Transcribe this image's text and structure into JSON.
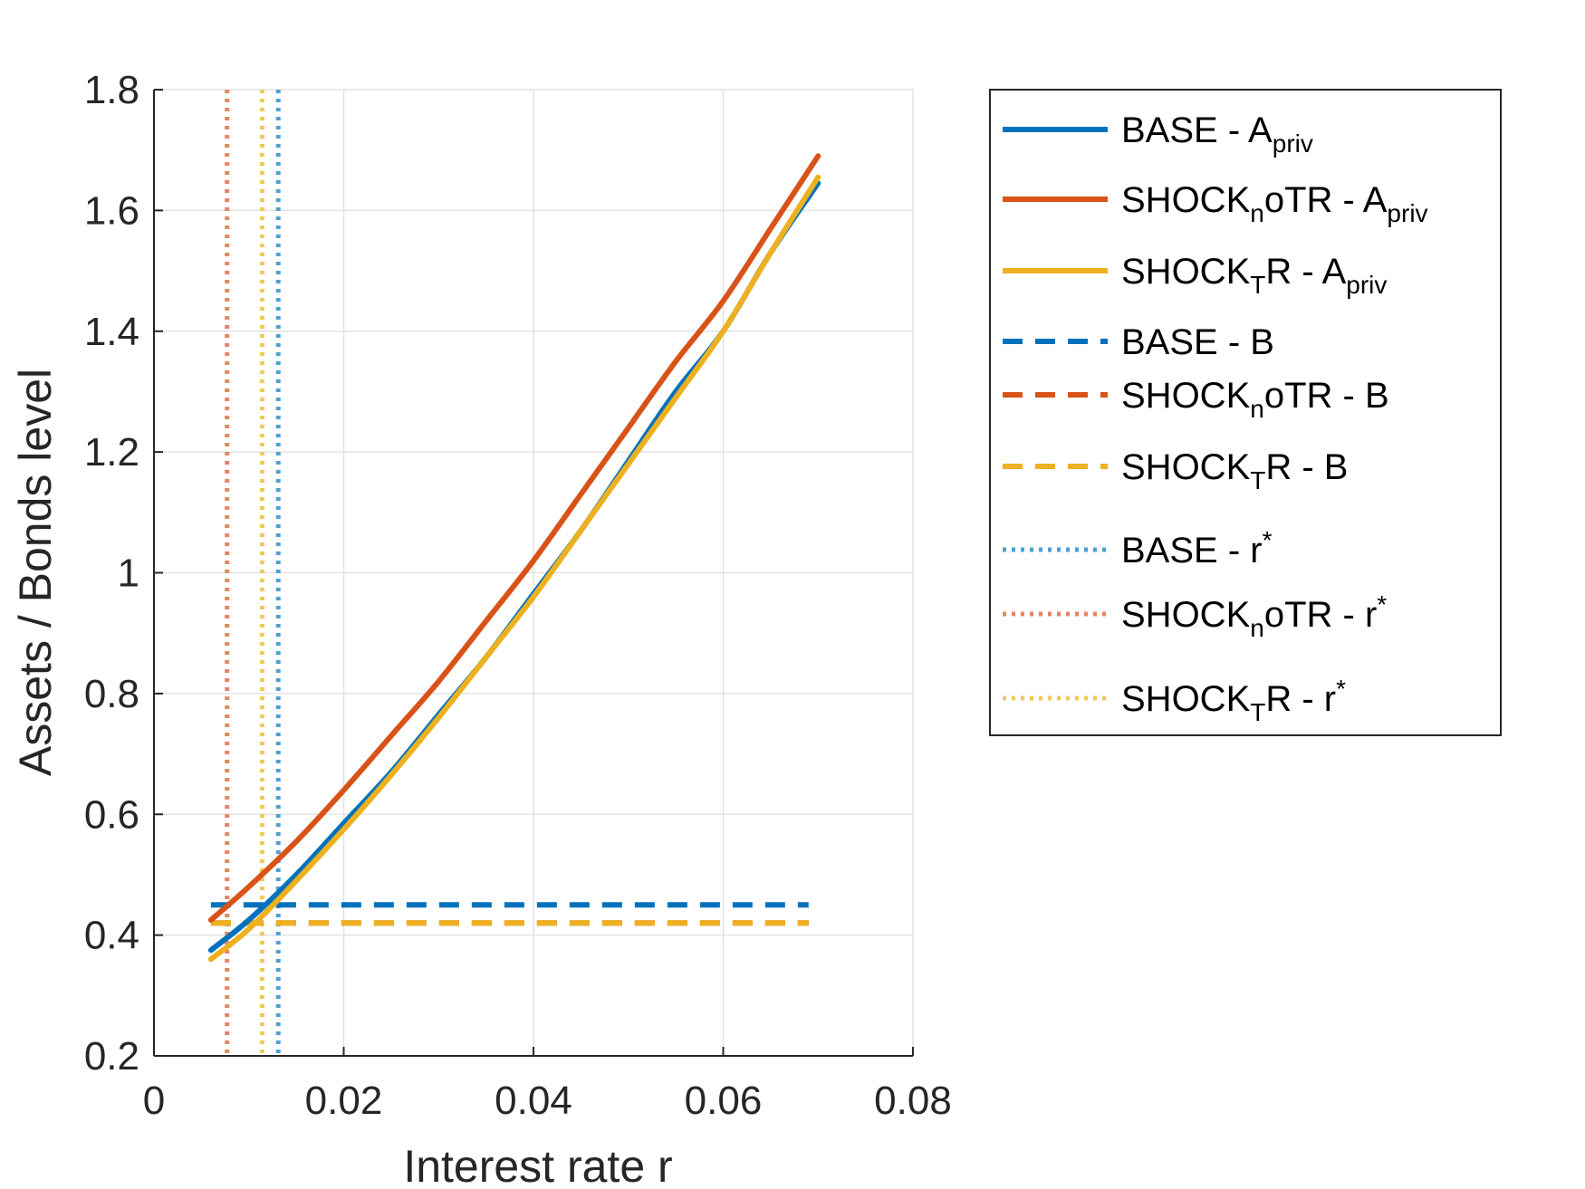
{
  "chart_data": {
    "type": "line",
    "xlabel": "Interest rate r",
    "ylabel": "Assets / Bonds level",
    "xlim": [
      0,
      0.08
    ],
    "ylim": [
      0.2,
      1.8
    ],
    "xticks": [
      0,
      0.02,
      0.04,
      0.06,
      0.08
    ],
    "xtick_labels": [
      "0",
      "0.02",
      "0.04",
      "0.06",
      "0.08"
    ],
    "yticks": [
      0.2,
      0.4,
      0.6,
      0.8,
      1.0,
      1.2,
      1.4,
      1.6,
      1.8
    ],
    "ytick_labels": [
      "0.2",
      "0.4",
      "0.6",
      "0.8",
      "1",
      "1.2",
      "1.4",
      "1.6",
      "1.8"
    ],
    "grid": true,
    "legend_position": "outside-right",
    "series": [
      {
        "name": "BASE - A",
        "name_sub": "priv",
        "name_sup": "",
        "style": "solid",
        "color": "#0072BD",
        "x": [
          0.006,
          0.01,
          0.015,
          0.02,
          0.025,
          0.03,
          0.035,
          0.04,
          0.045,
          0.05,
          0.055,
          0.06,
          0.065,
          0.07
        ],
        "y": [
          0.375,
          0.425,
          0.5,
          0.585,
          0.67,
          0.765,
          0.86,
          0.965,
          1.07,
          1.185,
          1.3,
          1.4,
          1.53,
          1.645
        ]
      },
      {
        "name": "SHOCK",
        "name_sub": "n",
        "name_after": "oTR - A",
        "name_sub2": "priv",
        "style": "solid",
        "color": "#D95319",
        "x": [
          0.006,
          0.01,
          0.015,
          0.02,
          0.025,
          0.03,
          0.035,
          0.04,
          0.045,
          0.05,
          0.055,
          0.06,
          0.065,
          0.07
        ],
        "y": [
          0.425,
          0.48,
          0.555,
          0.64,
          0.73,
          0.82,
          0.92,
          1.02,
          1.13,
          1.24,
          1.35,
          1.45,
          1.57,
          1.69
        ]
      },
      {
        "name": "SHOCK",
        "name_sub": "T",
        "name_after": "R - A",
        "name_sub2": "priv",
        "style": "solid",
        "color": "#EDB120",
        "x": [
          0.006,
          0.01,
          0.015,
          0.02,
          0.025,
          0.03,
          0.035,
          0.04,
          0.045,
          0.05,
          0.055,
          0.06,
          0.065,
          0.07
        ],
        "y": [
          0.36,
          0.41,
          0.49,
          0.575,
          0.665,
          0.76,
          0.86,
          0.96,
          1.07,
          1.18,
          1.29,
          1.4,
          1.53,
          1.655
        ]
      },
      {
        "name": "BASE - B",
        "style": "dashed",
        "color": "#0072BD",
        "x": [
          0.006,
          0.069
        ],
        "y": [
          0.45,
          0.45
        ]
      },
      {
        "name": "SHOCK",
        "name_sub": "n",
        "name_after": "oTR - B",
        "style": "dashed",
        "color": "#D95319",
        "x": [
          0.006,
          0.069
        ],
        "y": [
          0.42,
          0.42
        ]
      },
      {
        "name": "SHOCK",
        "name_sub": "T",
        "name_after": "R - B",
        "style": "dashed",
        "color": "#EDB120",
        "x": [
          0.006,
          0.069
        ],
        "y": [
          0.42,
          0.42
        ]
      },
      {
        "name": "BASE - r",
        "name_sup": "*",
        "style": "dotted",
        "color": "#4DA0D4",
        "vertical_x": 0.0131
      },
      {
        "name": "SHOCK",
        "name_sub": "n",
        "name_after": "oTR - r",
        "name_sup": "*",
        "style": "dotted",
        "color": "#E58660",
        "vertical_x": 0.0077
      },
      {
        "name": "SHOCK",
        "name_sub": "T",
        "name_after": "R - r",
        "name_sup": "*",
        "style": "dotted",
        "color": "#F2C75C",
        "vertical_x": 0.0114
      }
    ]
  }
}
